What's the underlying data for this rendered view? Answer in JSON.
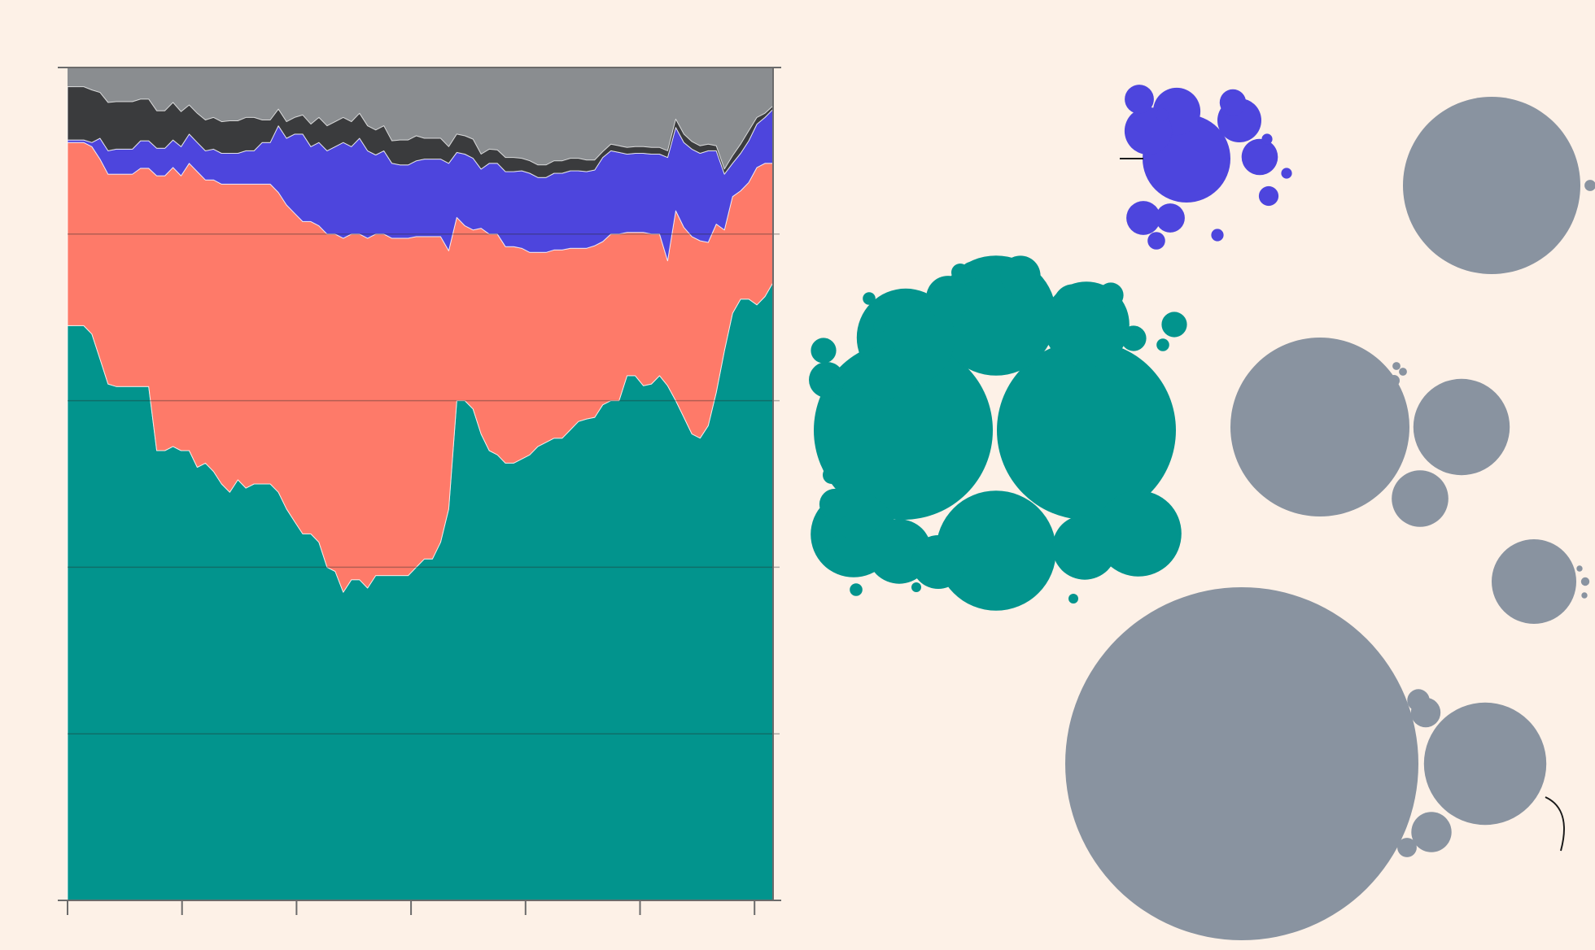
{
  "colors": {
    "background": "#fdf1e7",
    "teal": "#02948d",
    "salmon": "#fe7a69",
    "blue": "#4d45dd",
    "dark": "#3a3b3d",
    "light_grey": "#8a8d90",
    "bubble_grey": "#8993a0",
    "axis": "#6b6b6b"
  },
  "chart_data": [
    {
      "type": "area",
      "stacked": true,
      "normalized": true,
      "title": "",
      "xlabel": "",
      "ylabel": "",
      "ylim": [
        0,
        1
      ],
      "grid": true,
      "legend": "none",
      "x_tick_count": 7,
      "y_tick_count": 6,
      "series": [
        {
          "color_key": "teal",
          "values": [
            0.69,
            0.69,
            0.69,
            0.68,
            0.65,
            0.62,
            0.617,
            0.617,
            0.617,
            0.617,
            0.617,
            0.54,
            0.54,
            0.545,
            0.54,
            0.54,
            0.52,
            0.525,
            0.515,
            0.5,
            0.49,
            0.505,
            0.495,
            0.5,
            0.5,
            0.5,
            0.49,
            0.47,
            0.455,
            0.44,
            0.44,
            0.43,
            0.4,
            0.395,
            0.37,
            0.385,
            0.385,
            0.375,
            0.39,
            0.39,
            0.39,
            0.39,
            0.39,
            0.4,
            0.41,
            0.41,
            0.43,
            0.47,
            0.6,
            0.6,
            0.59,
            0.56,
            0.54,
            0.535,
            0.525,
            0.525,
            0.53,
            0.535,
            0.545,
            0.55,
            0.555,
            0.555,
            0.565,
            0.575,
            0.578,
            0.58,
            0.595,
            0.6,
            0.6,
            0.63,
            0.63,
            0.618,
            0.62,
            0.63,
            0.618,
            0.6,
            0.58,
            0.56,
            0.555,
            0.57,
            0.61,
            0.66,
            0.705,
            0.722,
            0.722,
            0.715,
            0.725,
            0.742
          ]
        },
        {
          "color_key": "salmon",
          "values": [
            0.22,
            0.22,
            0.22,
            0.225,
            0.24,
            0.252,
            0.255,
            0.255,
            0.255,
            0.262,
            0.262,
            0.33,
            0.33,
            0.335,
            0.33,
            0.345,
            0.355,
            0.34,
            0.35,
            0.36,
            0.37,
            0.355,
            0.365,
            0.36,
            0.36,
            0.36,
            0.36,
            0.365,
            0.37,
            0.375,
            0.375,
            0.38,
            0.4,
            0.405,
            0.425,
            0.415,
            0.415,
            0.42,
            0.41,
            0.41,
            0.405,
            0.405,
            0.405,
            0.397,
            0.387,
            0.387,
            0.367,
            0.31,
            0.22,
            0.21,
            0.215,
            0.247,
            0.26,
            0.265,
            0.26,
            0.26,
            0.253,
            0.243,
            0.233,
            0.228,
            0.226,
            0.226,
            0.218,
            0.208,
            0.205,
            0.206,
            0.196,
            0.2,
            0.2,
            0.172,
            0.172,
            0.184,
            0.18,
            0.17,
            0.15,
            0.228,
            0.228,
            0.237,
            0.237,
            0.22,
            0.202,
            0.145,
            0.14,
            0.13,
            0.14,
            0.165,
            0.16,
            0.143
          ]
        },
        {
          "color_key": "blue",
          "values": [
            0.003,
            0.003,
            0.003,
            0.005,
            0.025,
            0.028,
            0.03,
            0.03,
            0.03,
            0.033,
            0.033,
            0.033,
            0.033,
            0.033,
            0.035,
            0.035,
            0.035,
            0.035,
            0.037,
            0.037,
            0.037,
            0.037,
            0.04,
            0.04,
            0.05,
            0.05,
            0.08,
            0.08,
            0.095,
            0.105,
            0.09,
            0.1,
            0.1,
            0.105,
            0.115,
            0.105,
            0.115,
            0.105,
            0.095,
            0.1,
            0.09,
            0.088,
            0.088,
            0.091,
            0.093,
            0.093,
            0.093,
            0.105,
            0.078,
            0.086,
            0.086,
            0.071,
            0.085,
            0.085,
            0.09,
            0.09,
            0.093,
            0.095,
            0.09,
            0.09,
            0.092,
            0.092,
            0.093,
            0.093,
            0.092,
            0.091,
            0.101,
            0.1,
            0.098,
            0.094,
            0.095,
            0.095,
            0.096,
            0.096,
            0.124,
            0.1,
            0.102,
            0.105,
            0.105,
            0.11,
            0.088,
            0.067,
            0.04,
            0.045,
            0.05,
            0.052,
            0.055,
            0.065
          ]
        },
        {
          "color_key": "dark",
          "values": [
            0.064,
            0.064,
            0.064,
            0.063,
            0.055,
            0.058,
            0.057,
            0.057,
            0.057,
            0.05,
            0.05,
            0.045,
            0.045,
            0.045,
            0.042,
            0.035,
            0.035,
            0.037,
            0.038,
            0.038,
            0.039,
            0.039,
            0.04,
            0.04,
            0.027,
            0.027,
            0.02,
            0.02,
            0.02,
            0.023,
            0.027,
            0.03,
            0.03,
            0.03,
            0.03,
            0.03,
            0.03,
            0.03,
            0.03,
            0.03,
            0.027,
            0.03,
            0.03,
            0.03,
            0.025,
            0.025,
            0.025,
            0.02,
            0.022,
            0.022,
            0.023,
            0.018,
            0.017,
            0.016,
            0.017,
            0.017,
            0.015,
            0.015,
            0.015,
            0.015,
            0.015,
            0.015,
            0.015,
            0.015,
            0.014,
            0.012,
            0.007,
            0.008,
            0.008,
            0.008,
            0.008,
            0.008,
            0.008,
            0.008,
            0.008,
            0.01,
            0.01,
            0.009,
            0.009,
            0.008,
            0.006,
            0.006,
            0.009,
            0.011,
            0.012,
            0.008,
            0.005,
            0.004
          ]
        }
      ],
      "top_color_key": "light_grey"
    },
    {
      "type": "bubble-clusters",
      "clusters": [
        {
          "color_key": "blue",
          "values": [
            1.0,
            0.29,
            0.29,
            0.25,
            0.17,
            0.15,
            0.11,
            0.11,
            0.09,
            0.05,
            0.04,
            0.02,
            0.02,
            0.015,
            0.015
          ],
          "leader_line": true
        },
        {
          "color_key": "teal",
          "values": [
            1.0,
            1.0,
            0.45,
            0.45,
            0.3,
            0.23,
            0.23,
            0.23,
            0.13,
            0.13,
            0.09,
            0.09,
            0.09,
            0.06,
            0.05,
            0.05,
            0.04,
            0.03,
            0.02,
            0.02,
            0.02,
            0.02,
            0.02,
            0.01,
            0.01,
            0.01,
            0.005,
            0.005,
            0.005,
            0.005,
            0.005,
            0.005,
            0.003,
            0.003
          ]
        },
        {
          "color_key": "bubble_grey",
          "values": [
            1.0,
            0.004
          ]
        },
        {
          "color_key": "bubble_grey",
          "values": [
            1.0,
            0.29,
            0.1,
            0.004,
            0.002,
            0.002
          ]
        },
        {
          "color_key": "bubble_grey",
          "values": [
            1.0,
            0.01,
            0.005,
            0.005
          ]
        },
        {
          "color_key": "bubble_grey",
          "values": [
            1.0,
            0.12,
            0.013,
            0.007,
            0.004,
            0.003
          ],
          "leader_line": true
        }
      ]
    }
  ]
}
